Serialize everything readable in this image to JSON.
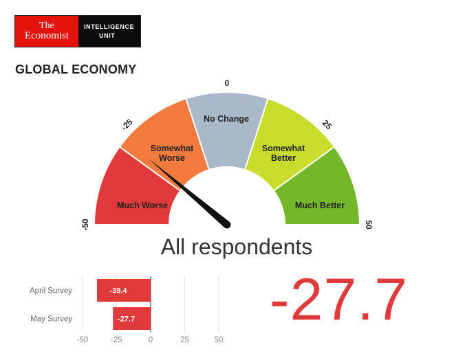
{
  "logo": {
    "line1": "The",
    "line2": "Economist",
    "unit_line1": "INTELLIGENCE",
    "unit_line2": "UNIT"
  },
  "section_title": "GLOBAL ECONOMY",
  "subtitle": "All respondents",
  "big_value": "-27.7",
  "colors": {
    "much_worse": "#e03a3a",
    "somewhat_worse": "#f47a3d",
    "no_change": "#aab9ca",
    "somewhat_better": "#c8dc2b",
    "much_better": "#74b72a",
    "bar": "#e03a3a",
    "big_value": "#e03a3a"
  },
  "chart_data": [
    {
      "type": "gauge",
      "range": [
        -50,
        50
      ],
      "value": -27.7,
      "ticks": [
        {
          "value": -50,
          "label": "-50"
        },
        {
          "value": -25,
          "label": "-25"
        },
        {
          "value": 0,
          "label": "0"
        },
        {
          "value": 25,
          "label": "25"
        },
        {
          "value": 50,
          "label": "50"
        }
      ],
      "bands": [
        {
          "from": -50,
          "to": -30,
          "label": "Much Worse"
        },
        {
          "from": -30,
          "to": -10,
          "label": "Somewhat Worse"
        },
        {
          "from": -10,
          "to": 10,
          "label": "No Change"
        },
        {
          "from": 10,
          "to": 30,
          "label": "Somewhat Better"
        },
        {
          "from": 30,
          "to": 50,
          "label": "Much Better"
        }
      ]
    },
    {
      "type": "bar",
      "orientation": "horizontal",
      "categories": [
        "April Survey",
        "May Survey"
      ],
      "values": [
        -39.4,
        -27.7
      ],
      "value_labels": [
        "-39.4",
        "-27.7"
      ],
      "xlim": [
        -50,
        50
      ],
      "xticks": [
        -50,
        -25,
        0,
        25,
        50
      ]
    }
  ]
}
